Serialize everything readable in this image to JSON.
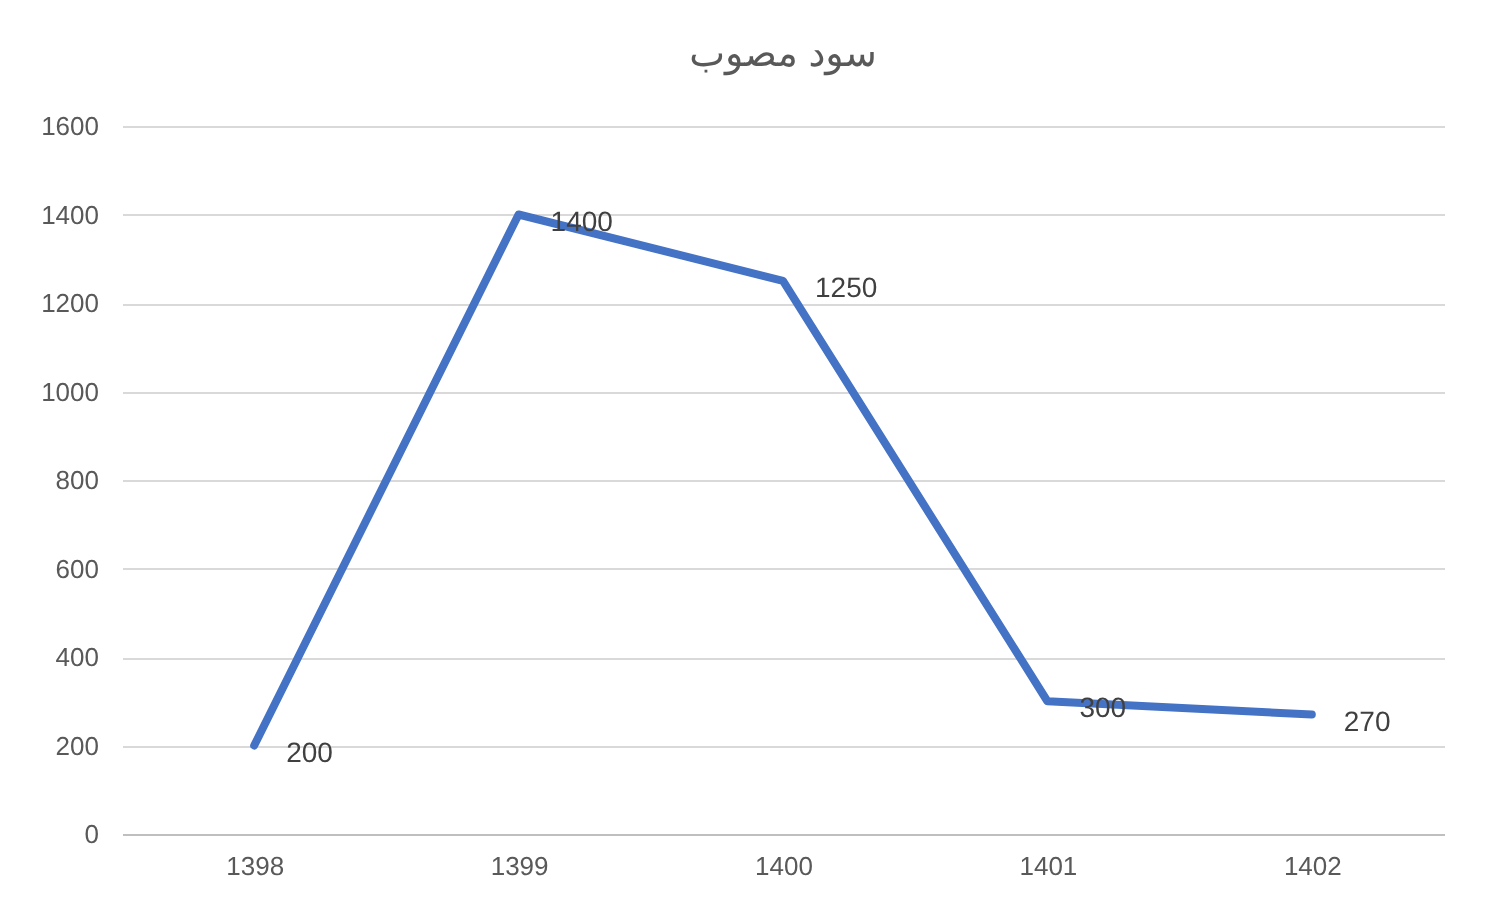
{
  "chart_data": {
    "type": "line",
    "title": "سود مصوب",
    "categories": [
      "1398",
      "1399",
      "1400",
      "1401",
      "1402"
    ],
    "series": [
      {
        "color": "#4472c4",
        "values": [
          200,
          1400,
          1250,
          300,
          270
        ]
      }
    ],
    "ylim": [
      0,
      1600
    ],
    "yticks": [
      0,
      200,
      400,
      600,
      800,
      1000,
      1200,
      1400,
      1600
    ],
    "grid": "y",
    "legend": false,
    "marker": "none",
    "line_style": "solid",
    "data_labels": true
  }
}
